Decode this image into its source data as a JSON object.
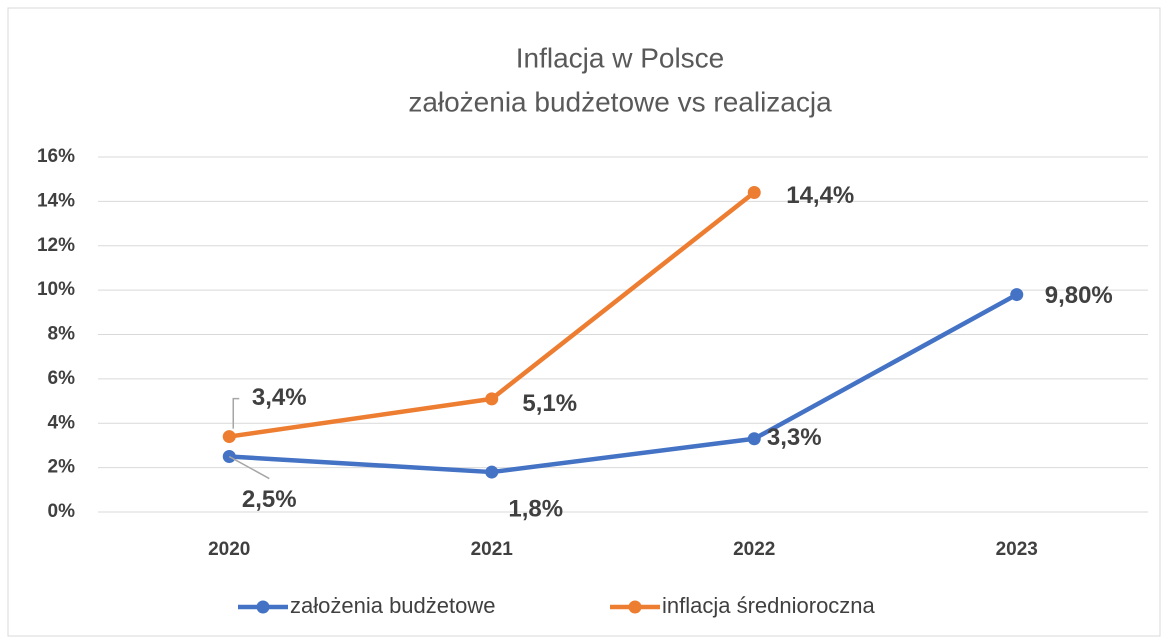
{
  "chart_data": {
    "type": "line",
    "title": "Inflacja w Polsce",
    "subtitle": "założenia budżetowe vs realizacja",
    "categories": [
      "2020",
      "2021",
      "2022",
      "2023"
    ],
    "series": [
      {
        "name": "założenia budżetowe",
        "color": "#4472c4",
        "values": [
          2.5,
          1.8,
          3.3,
          9.8
        ],
        "value_labels": [
          "2,5%",
          "1,8%",
          "3,3%",
          "9,80%"
        ]
      },
      {
        "name": "inflacja średnioroczna",
        "color": "#ed7d31",
        "values": [
          3.4,
          5.1,
          14.4,
          null
        ],
        "value_labels": [
          "3,4%",
          "5,1%",
          "14,4%",
          null
        ]
      }
    ],
    "ylim": [
      0,
      16
    ],
    "yticks": [
      {
        "value": 0,
        "label": "0%"
      },
      {
        "value": 2,
        "label": "2%"
      },
      {
        "value": 4,
        "label": "4%"
      },
      {
        "value": 6,
        "label": "6%"
      },
      {
        "value": 8,
        "label": "8%"
      },
      {
        "value": 10,
        "label": "10%"
      },
      {
        "value": 12,
        "label": "12%"
      },
      {
        "value": 14,
        "label": "14%"
      },
      {
        "value": 16,
        "label": "16%"
      }
    ],
    "grid": true,
    "legend": "bottom"
  }
}
